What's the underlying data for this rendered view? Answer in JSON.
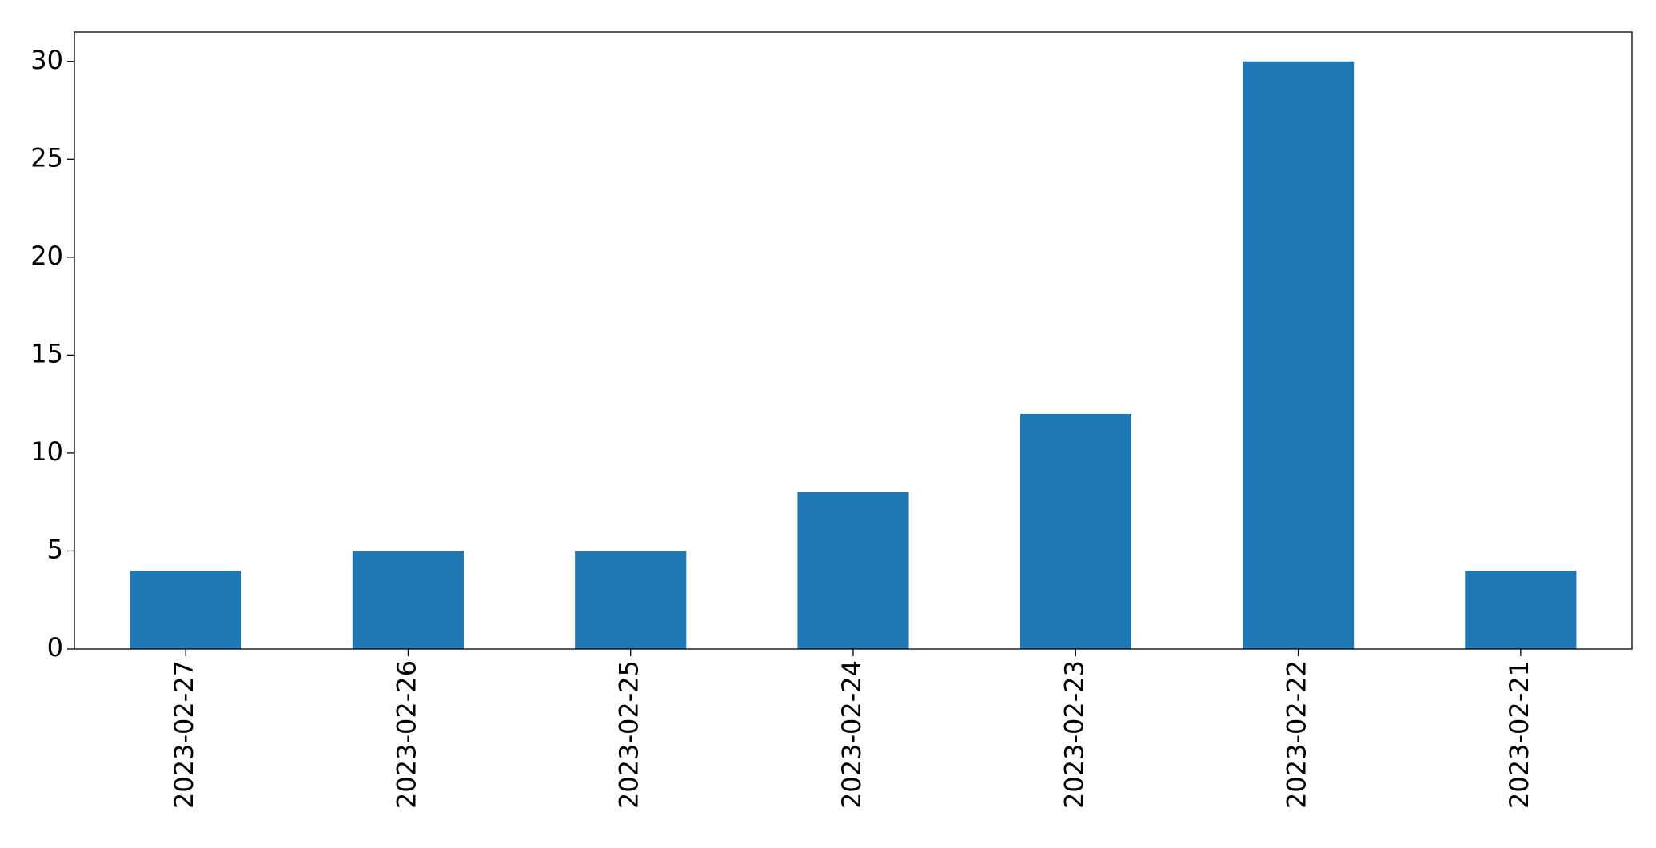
{
  "chart_data": {
    "type": "bar",
    "categories": [
      "2023-02-27",
      "2023-02-26",
      "2023-02-25",
      "2023-02-24",
      "2023-02-23",
      "2023-02-22",
      "2023-02-21"
    ],
    "values": [
      4,
      5,
      5,
      8,
      12,
      30,
      4
    ],
    "color": "#1f77b4",
    "ylim": [
      0,
      31.5
    ],
    "yticks": [
      0,
      5,
      10,
      15,
      20,
      25,
      30
    ],
    "grid": false
  }
}
